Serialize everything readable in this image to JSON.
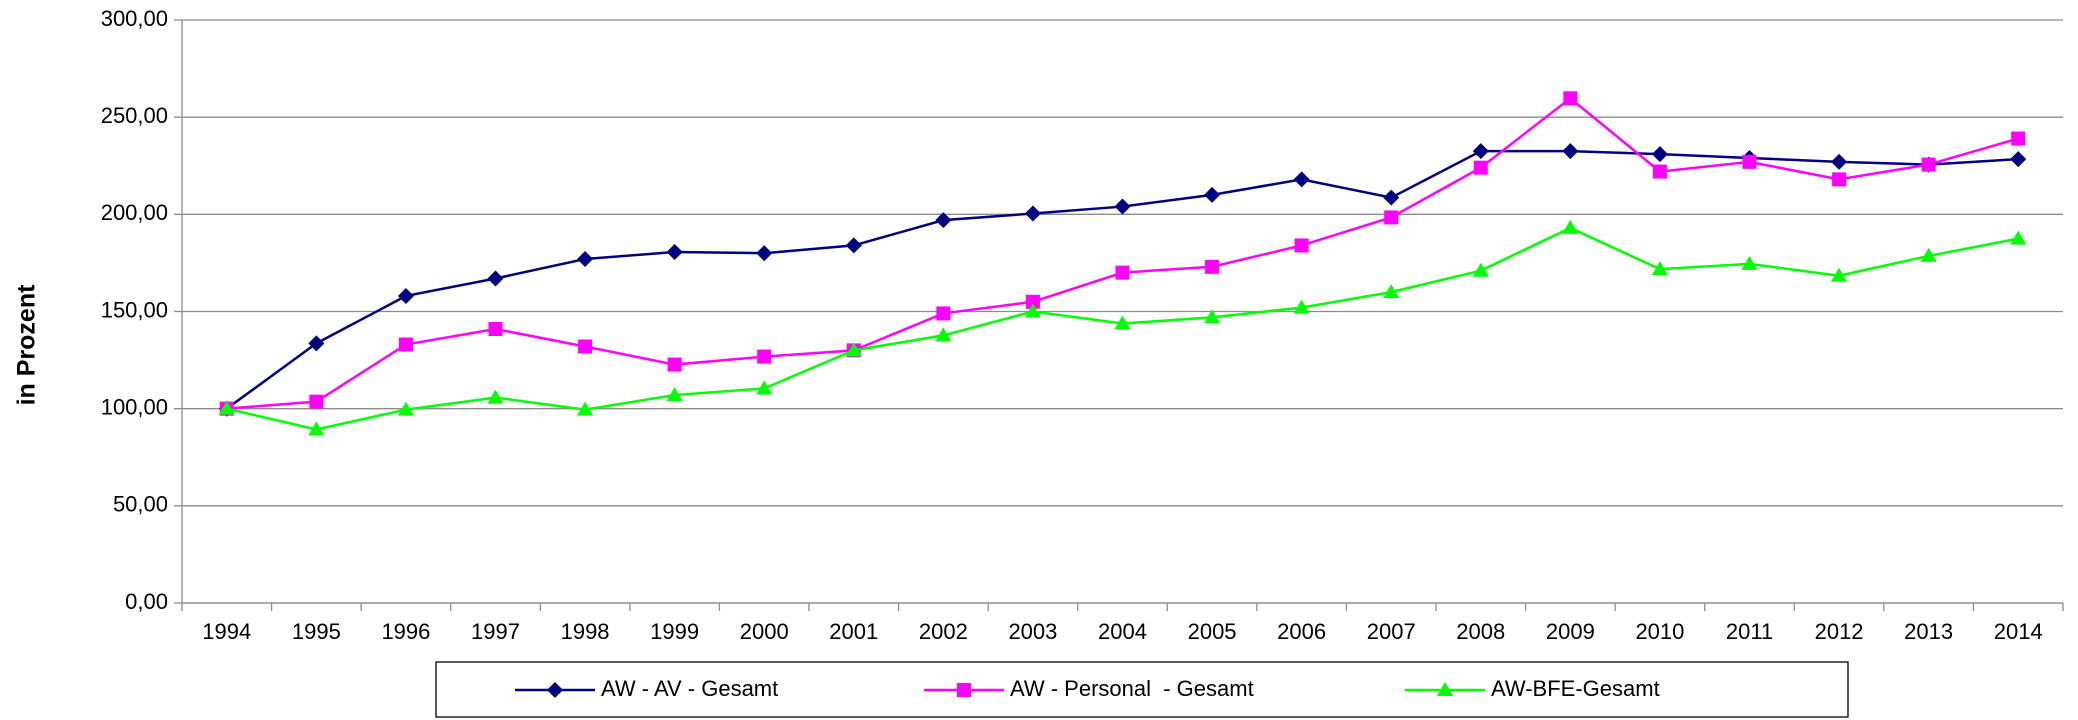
{
  "chart_data": {
    "type": "line",
    "y_label": "in Prozent",
    "categories": [
      "1994",
      "1995",
      "1996",
      "1997",
      "1998",
      "1999",
      "2000",
      "2001",
      "2002",
      "2003",
      "2004",
      "2005",
      "2006",
      "2007",
      "2008",
      "2009",
      "2010",
      "2011",
      "2012",
      "2013",
      "2014"
    ],
    "series": [
      {
        "name": "AW - AV - Gesamt",
        "color": "#000080",
        "marker": "diamond",
        "values": [
          100,
          133.6,
          158,
          167,
          177,
          180.6,
          180,
          184,
          197,
          200.4,
          204,
          210,
          218,
          208.6,
          232.5,
          232.5,
          231,
          229,
          227,
          225.6,
          228.4
        ]
      },
      {
        "name": "AW - Personal  - Gesamt",
        "color": "#ff00ff",
        "marker": "square",
        "values": [
          100,
          103.6,
          133,
          141,
          132,
          122.7,
          126.8,
          130,
          149,
          155,
          170,
          173,
          184,
          198.4,
          224,
          259.7,
          222,
          227,
          218,
          225.6,
          239
        ]
      },
      {
        "name": "AW-BFE-Gesamt",
        "color": "#00ff00",
        "marker": "triangle",
        "values": [
          100,
          89.3,
          99.5,
          105.7,
          99.5,
          107,
          110.4,
          130,
          137.7,
          150,
          143.8,
          147,
          152,
          160,
          171,
          193,
          171.8,
          174.5,
          168.4,
          178.6,
          187.5
        ]
      }
    ],
    "ylim": [
      0,
      300
    ],
    "yticks": [
      {
        "value": 0,
        "label": "0,00"
      },
      {
        "value": 50,
        "label": "50,00"
      },
      {
        "value": 100,
        "label": "100,00"
      },
      {
        "value": 150,
        "label": "150,00"
      },
      {
        "value": 200,
        "label": "200,00"
      },
      {
        "value": 250,
        "label": "250,00"
      },
      {
        "value": 300,
        "label": "300,00"
      }
    ],
    "grid": true,
    "legend": "bottom"
  }
}
